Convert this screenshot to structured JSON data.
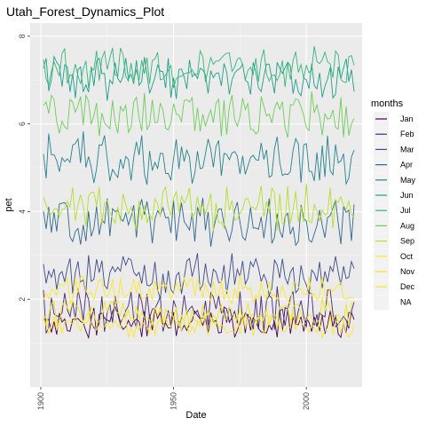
{
  "chart_data": {
    "type": "line",
    "title": "Utah_Forest_Dynamics_Plot",
    "xlabel": "Date",
    "ylabel": "pet",
    "xlim": [
      1896,
      2021
    ],
    "ylim": [
      0.0,
      8.3
    ],
    "x_ticks": [
      1900,
      1950,
      2000
    ],
    "y_ticks": [
      2,
      4,
      6,
      8
    ],
    "grid": true,
    "legend": {
      "title": "months",
      "position": "right"
    },
    "time_range": [
      1901,
      2018
    ],
    "series": [
      {
        "name": "Jan",
        "color": "#440154",
        "mean": 1.45,
        "variation": 0.35
      },
      {
        "name": "Feb",
        "color": "#482878",
        "mean": 1.75,
        "variation": 0.45
      },
      {
        "name": "Mar",
        "color": "#3E4A89",
        "mean": 2.55,
        "variation": 0.45
      },
      {
        "name": "Apr",
        "color": "#31688E",
        "mean": 3.75,
        "variation": 0.5
      },
      {
        "name": "May",
        "color": "#26828E",
        "mean": 5.2,
        "variation": 0.55
      },
      {
        "name": "Jun",
        "color": "#1F9E89",
        "mean": 7.0,
        "variation": 0.45
      },
      {
        "name": "Jul",
        "color": "#35B779",
        "mean": 7.3,
        "variation": 0.4
      },
      {
        "name": "Aug",
        "color": "#6DCD59",
        "mean": 6.2,
        "variation": 0.45
      },
      {
        "name": "Sep",
        "color": "#B4DE2C",
        "mean": 4.1,
        "variation": 0.45
      },
      {
        "name": "Oct",
        "color": "#FDE725",
        "mean": 2.2,
        "variation": 0.3
      },
      {
        "name": "Nov",
        "color": "#F2E51D",
        "mean": 1.7,
        "variation": 0.3
      },
      {
        "name": "Dec",
        "color": "#FDE725",
        "mean": 1.4,
        "variation": 0.25
      },
      {
        "name": "NA",
        "color": "#BDBDBD",
        "mean": null,
        "variation": null
      }
    ]
  }
}
